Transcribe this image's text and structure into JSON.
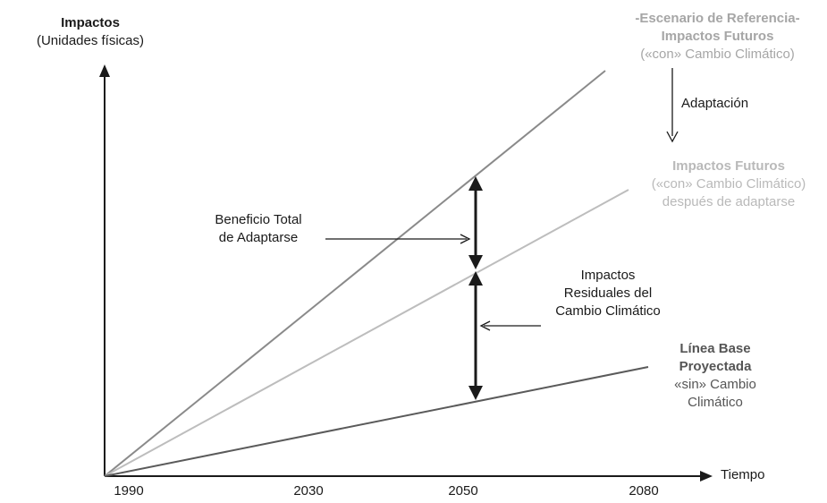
{
  "axes": {
    "y_title": "Impactos",
    "y_unit": "(Unidades físicas)",
    "x_title": "Tiempo",
    "x_ticks": [
      "1990",
      "2030",
      "2050",
      "2080"
    ]
  },
  "labels": {
    "reference": [
      "-Escenario de Referencia-",
      "Impactos Futuros",
      "(«con» Cambio Climático)"
    ],
    "adaptation": "Adaptación",
    "after_adaptation": [
      "Impactos Futuros",
      "(«con» Cambio Climático)",
      "después de adaptarse"
    ],
    "baseline_bold": [
      "Línea Base",
      "Proyectada"
    ],
    "baseline": [
      "«sin» Cambio",
      "Climático"
    ],
    "total_benefit": [
      "Beneficio Total",
      "de Adaptarse"
    ],
    "residual": [
      "Impactos",
      "Residuales del",
      "Cambio Climático"
    ]
  },
  "colors": {
    "reference_line": "#8a8a8a",
    "adapted_line": "#bdbdbd",
    "baseline_line": "#5a5a5a",
    "axis": "#1a1a1a"
  }
}
